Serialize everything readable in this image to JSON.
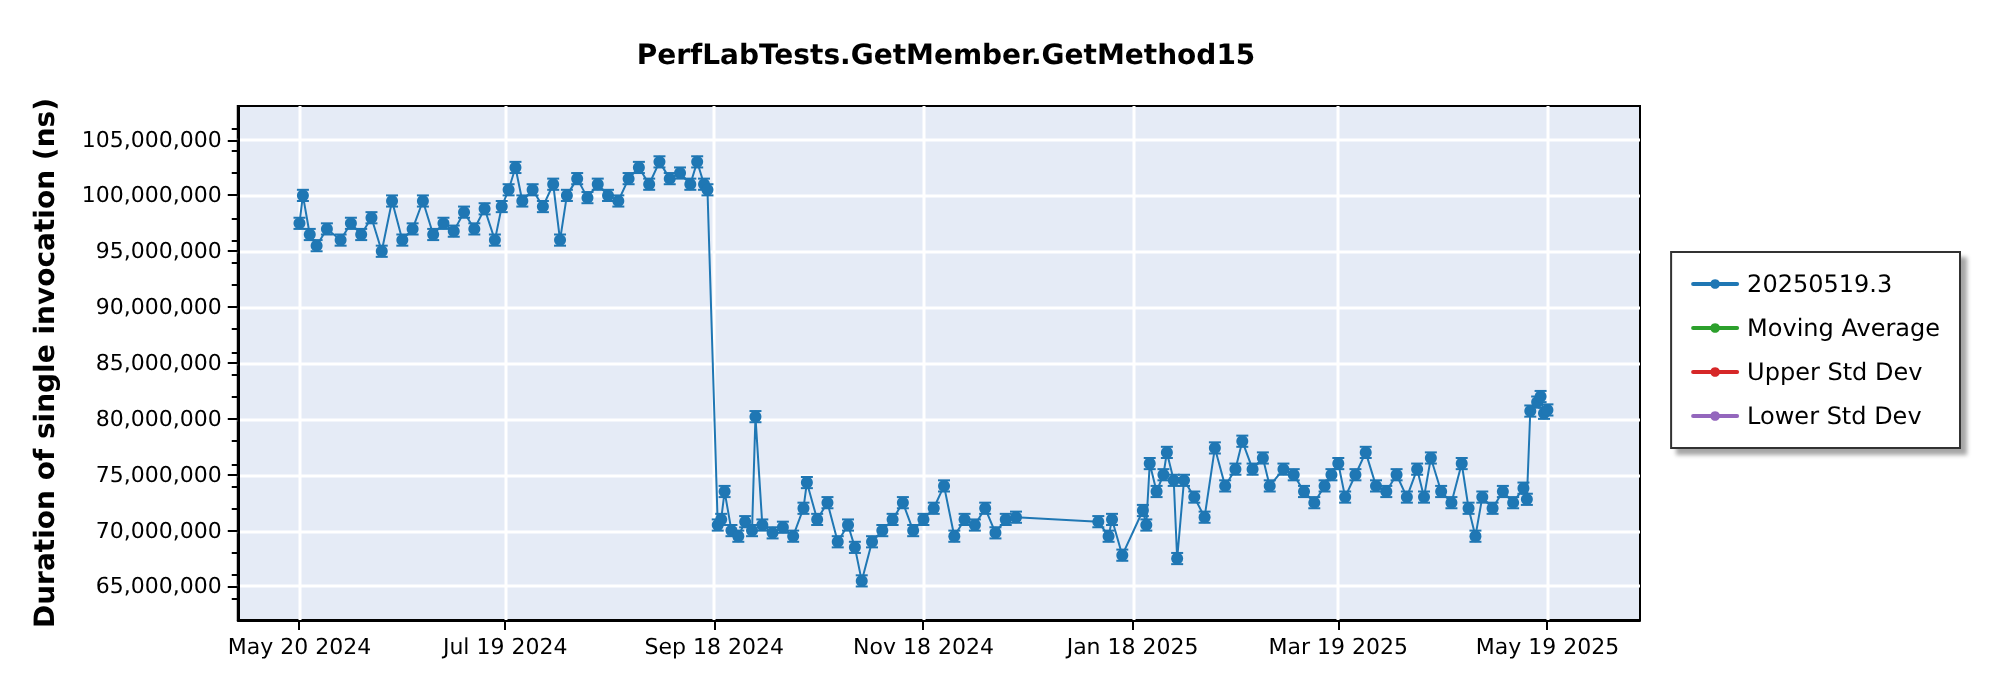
{
  "chart_data": {
    "type": "line",
    "title": "PerfLabTests.GetMember.GetMethod15",
    "ylabel": "Duration of single invocation (ns)",
    "xlim": [
      "2024-05-02",
      "2025-06-15"
    ],
    "xticks": [
      {
        "value": "2024-05-20",
        "label": "May 20 2024"
      },
      {
        "value": "2024-07-19",
        "label": "Jul 19 2024"
      },
      {
        "value": "2024-09-18",
        "label": "Sep 18 2024"
      },
      {
        "value": "2024-11-18",
        "label": "Nov 18 2024"
      },
      {
        "value": "2025-01-18",
        "label": "Jan 18 2025"
      },
      {
        "value": "2025-03-19",
        "label": "Mar 19 2025"
      },
      {
        "value": "2025-05-19",
        "label": "May 19 2025"
      }
    ],
    "ylim": [
      62000000,
      108000000
    ],
    "yticks": [
      {
        "value": 65000000,
        "label": "65,000,000"
      },
      {
        "value": 70000000,
        "label": "70,000,000"
      },
      {
        "value": 75000000,
        "label": "75,000,000"
      },
      {
        "value": 80000000,
        "label": "80,000,000"
      },
      {
        "value": 85000000,
        "label": "85,000,000"
      },
      {
        "value": 90000000,
        "label": "90,000,000"
      },
      {
        "value": 95000000,
        "label": "95,000,000"
      },
      {
        "value": 100000000,
        "label": "100,000,000"
      },
      {
        "value": 105000000,
        "label": "105,000,000"
      }
    ],
    "grid": true,
    "legend": "right",
    "marker": "circle",
    "line_style": "solid",
    "x": [
      "2024-05-20",
      "2024-05-21",
      "2024-05-23",
      "2024-05-25",
      "2024-05-28",
      "2024-06-01",
      "2024-06-04",
      "2024-06-07",
      "2024-06-10",
      "2024-06-13",
      "2024-06-16",
      "2024-06-19",
      "2024-06-22",
      "2024-06-25",
      "2024-06-28",
      "2024-07-01",
      "2024-07-04",
      "2024-07-07",
      "2024-07-10",
      "2024-07-13",
      "2024-07-16",
      "2024-07-18",
      "2024-07-20",
      "2024-07-22",
      "2024-07-24",
      "2024-07-27",
      "2024-07-30",
      "2024-08-02",
      "2024-08-04",
      "2024-08-06",
      "2024-08-09",
      "2024-08-12",
      "2024-08-15",
      "2024-08-18",
      "2024-08-21",
      "2024-08-24",
      "2024-08-27",
      "2024-08-30",
      "2024-09-02",
      "2024-09-05",
      "2024-09-08",
      "2024-09-11",
      "2024-09-13",
      "2024-09-15",
      "2024-09-16",
      "2024-09-19",
      "2024-09-20",
      "2024-09-21",
      "2024-09-23",
      "2024-09-25",
      "2024-09-27",
      "2024-09-29",
      "2024-09-30",
      "2024-10-02",
      "2024-10-05",
      "2024-10-08",
      "2024-10-11",
      "2024-10-14",
      "2024-10-15",
      "2024-10-18",
      "2024-10-21",
      "2024-10-24",
      "2024-10-27",
      "2024-10-29",
      "2024-10-31",
      "2024-11-03",
      "2024-11-06",
      "2024-11-09",
      "2024-11-12",
      "2024-11-15",
      "2024-11-18",
      "2024-11-21",
      "2024-11-24",
      "2024-11-27",
      "2024-11-30",
      "2024-12-03",
      "2024-12-06",
      "2024-12-09",
      "2024-12-12",
      "2024-12-15",
      "2025-01-08",
      "2025-01-11",
      "2025-01-12",
      "2025-01-15",
      "2025-01-21",
      "2025-01-22",
      "2025-01-23",
      "2025-01-25",
      "2025-01-27",
      "2025-01-28",
      "2025-01-30",
      "2025-01-31",
      "2025-02-02",
      "2025-02-05",
      "2025-02-08",
      "2025-02-11",
      "2025-02-14",
      "2025-02-17",
      "2025-02-19",
      "2025-02-22",
      "2025-02-25",
      "2025-02-27",
      "2025-03-03",
      "2025-03-06",
      "2025-03-09",
      "2025-03-12",
      "2025-03-15",
      "2025-03-17",
      "2025-03-19",
      "2025-03-21",
      "2025-03-24",
      "2025-03-27",
      "2025-03-30",
      "2025-04-02",
      "2025-04-05",
      "2025-04-08",
      "2025-04-11",
      "2025-04-13",
      "2025-04-15",
      "2025-04-18",
      "2025-04-21",
      "2025-04-24",
      "2025-04-26",
      "2025-04-28",
      "2025-04-30",
      "2025-05-03",
      "2025-05-06",
      "2025-05-09",
      "2025-05-12",
      "2025-05-13",
      "2025-05-14",
      "2025-05-16",
      "2025-05-17",
      "2025-05-18",
      "2025-05-19"
    ],
    "series": [
      {
        "name": "20250519.3",
        "color": "#1f77b4",
        "values": [
          97500000,
          100000000,
          96500000,
          95500000,
          97000000,
          96000000,
          97500000,
          96500000,
          98000000,
          95000000,
          99500000,
          96000000,
          97000000,
          99500000,
          96500000,
          97500000,
          96800000,
          98500000,
          97000000,
          98800000,
          96000000,
          99000000,
          100500000,
          102500000,
          99500000,
          100500000,
          99000000,
          101000000,
          96000000,
          100000000,
          101500000,
          99800000,
          101000000,
          100000000,
          99500000,
          101500000,
          102500000,
          101000000,
          103000000,
          101500000,
          102000000,
          101000000,
          103000000,
          101000000,
          100500000,
          70500000,
          71000000,
          73500000,
          70000000,
          69500000,
          70800000,
          70000000,
          80200000,
          70500000,
          69800000,
          70300000,
          69500000,
          72000000,
          74300000,
          71000000,
          72500000,
          69000000,
          70500000,
          68500000,
          65500000,
          69000000,
          70000000,
          71000000,
          72500000,
          70000000,
          71000000,
          72000000,
          74000000,
          69500000,
          71000000,
          70500000,
          72000000,
          69800000,
          71000000,
          71200000,
          70800000,
          69500000,
          71000000,
          67800000,
          71800000,
          70500000,
          76000000,
          73500000,
          75000000,
          77000000,
          74500000,
          67500000,
          74500000,
          73000000,
          71200000,
          77400000,
          74000000,
          75500000,
          78000000,
          75500000,
          76500000,
          74000000,
          75500000,
          75000000,
          73500000,
          72500000,
          74000000,
          75000000,
          76000000,
          73000000,
          75000000,
          77000000,
          74000000,
          73500000,
          75000000,
          73000000,
          75500000,
          73000000,
          76500000,
          73500000,
          72500000,
          76000000,
          72000000,
          69500000,
          73000000,
          72000000,
          73500000,
          72500000,
          73800000,
          72800000,
          80700000,
          81500000,
          82000000,
          80500000,
          80800000
        ],
        "errors": [
          500000,
          500000,
          500000,
          500000,
          500000,
          500000,
          500000,
          500000,
          500000,
          500000,
          500000,
          500000,
          500000,
          500000,
          500000,
          500000,
          500000,
          500000,
          500000,
          500000,
          500000,
          500000,
          500000,
          500000,
          500000,
          500000,
          500000,
          500000,
          500000,
          500000,
          500000,
          500000,
          500000,
          500000,
          500000,
          500000,
          500000,
          500000,
          500000,
          500000,
          500000,
          500000,
          500000,
          500000,
          500000,
          500000,
          500000,
          500000,
          500000,
          500000,
          500000,
          500000,
          500000,
          500000,
          500000,
          500000,
          500000,
          500000,
          500000,
          500000,
          500000,
          500000,
          500000,
          500000,
          500000,
          500000,
          500000,
          500000,
          500000,
          500000,
          500000,
          500000,
          500000,
          500000,
          500000,
          500000,
          500000,
          500000,
          500000,
          500000,
          500000,
          500000,
          500000,
          500000,
          500000,
          500000,
          500000,
          500000,
          500000,
          500000,
          500000,
          500000,
          500000,
          500000,
          500000,
          500000,
          500000,
          500000,
          500000,
          500000,
          500000,
          500000,
          500000,
          500000,
          500000,
          500000,
          500000,
          500000,
          500000,
          500000,
          500000,
          500000,
          500000,
          500000,
          500000,
          500000,
          500000,
          500000,
          500000,
          500000,
          500000,
          500000,
          500000,
          500000,
          500000,
          500000,
          500000,
          500000,
          500000,
          500000,
          500000,
          500000,
          500000,
          500000,
          500000
        ]
      },
      {
        "name": "Moving Average",
        "color": "#2ca02c",
        "values": [
          null,
          null,
          null,
          null,
          null,
          null,
          null,
          null,
          null,
          null,
          null,
          null,
          null,
          null,
          null,
          null,
          null,
          null,
          null,
          null,
          null,
          null,
          null,
          null,
          null,
          null,
          null,
          null,
          null,
          null,
          null,
          null,
          null,
          null,
          null,
          null,
          null,
          null,
          null,
          null,
          null,
          null,
          null,
          null,
          null,
          null,
          null,
          null,
          null,
          null,
          null,
          null,
          null,
          null,
          null,
          null,
          null,
          null,
          null,
          null,
          null,
          null,
          null,
          null,
          null,
          null,
          null,
          null,
          null,
          null,
          null,
          null,
          null,
          null,
          null,
          null,
          null,
          null,
          null,
          null,
          null,
          null,
          null,
          null,
          null,
          null,
          null,
          null,
          null,
          null,
          null,
          null,
          null,
          null,
          null,
          null,
          null,
          null,
          null,
          null,
          null,
          null,
          null,
          null,
          null,
          null,
          null,
          null,
          null,
          null,
          null,
          null,
          null,
          null,
          null,
          null,
          null,
          null,
          null,
          null,
          null,
          null,
          null,
          null,
          null,
          null,
          null,
          null,
          null,
          null,
          null,
          null,
          null,
          null,
          null
        ]
      },
      {
        "name": "Upper Std Dev",
        "color": "#d62728",
        "values": [
          null,
          null,
          null,
          null,
          null,
          null,
          null,
          null,
          null,
          null,
          null,
          null,
          null,
          null,
          null,
          null,
          null,
          null,
          null,
          null,
          null,
          null,
          null,
          null,
          null,
          null,
          null,
          null,
          null,
          null,
          null,
          null,
          null,
          null,
          null,
          null,
          null,
          null,
          null,
          null,
          null,
          null,
          null,
          null,
          null,
          null,
          null,
          null,
          null,
          null,
          null,
          null,
          null,
          null,
          null,
          null,
          null,
          null,
          null,
          null,
          null,
          null,
          null,
          null,
          null,
          null,
          null,
          null,
          null,
          null,
          null,
          null,
          null,
          null,
          null,
          null,
          null,
          null,
          null,
          null,
          null,
          null,
          null,
          null,
          null,
          null,
          null,
          null,
          null,
          null,
          null,
          null,
          null,
          null,
          null,
          null,
          null,
          null,
          null,
          null,
          null,
          null,
          null,
          null,
          null,
          null,
          null,
          null,
          null,
          null,
          null,
          null,
          null,
          null,
          null,
          null,
          null,
          null,
          null,
          null,
          null,
          null,
          null,
          null,
          null,
          null,
          null,
          null,
          null,
          null,
          null,
          null,
          null,
          null,
          null
        ]
      },
      {
        "name": "Lower Std Dev",
        "color": "#9467bd",
        "values": [
          null,
          null,
          null,
          null,
          null,
          null,
          null,
          null,
          null,
          null,
          null,
          null,
          null,
          null,
          null,
          null,
          null,
          null,
          null,
          null,
          null,
          null,
          null,
          null,
          null,
          null,
          null,
          null,
          null,
          null,
          null,
          null,
          null,
          null,
          null,
          null,
          null,
          null,
          null,
          null,
          null,
          null,
          null,
          null,
          null,
          null,
          null,
          null,
          null,
          null,
          null,
          null,
          null,
          null,
          null,
          null,
          null,
          null,
          null,
          null,
          null,
          null,
          null,
          null,
          null,
          null,
          null,
          null,
          null,
          null,
          null,
          null,
          null,
          null,
          null,
          null,
          null,
          null,
          null,
          null,
          null,
          null,
          null,
          null,
          null,
          null,
          null,
          null,
          null,
          null,
          null,
          null,
          null,
          null,
          null,
          null,
          null,
          null,
          null,
          null,
          null,
          null,
          null,
          null,
          null,
          null,
          null,
          null,
          null,
          null,
          null,
          null,
          null,
          null,
          null,
          null,
          null,
          null,
          null,
          null,
          null,
          null,
          null,
          null,
          null,
          null,
          null,
          null,
          null,
          null,
          null,
          null,
          null,
          null,
          null
        ]
      }
    ]
  }
}
